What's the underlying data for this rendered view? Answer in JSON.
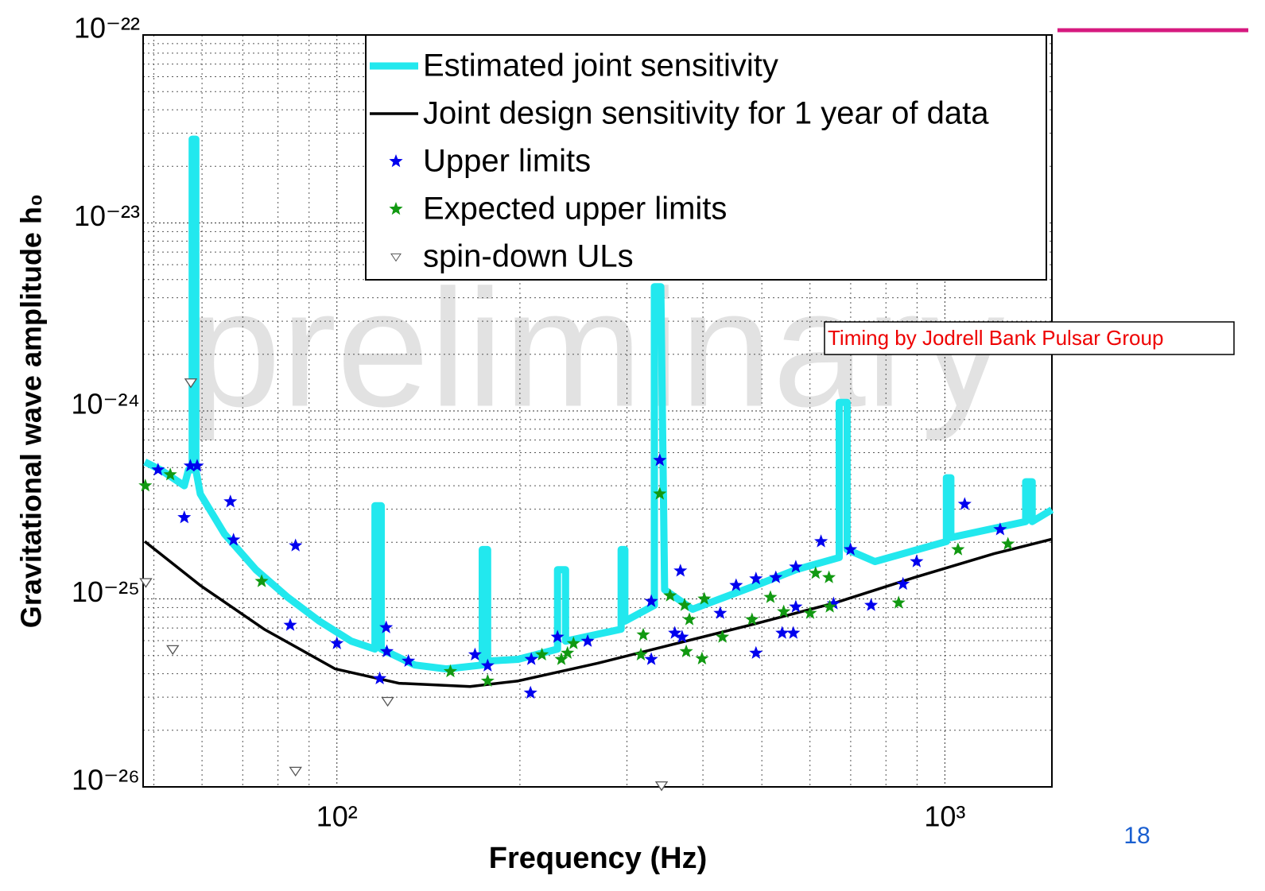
{
  "chart_data": {
    "type": "line",
    "xlabel": "Frequency (Hz)",
    "ylabel": "Gravitational wave amplitude h₀",
    "xscale": "log",
    "yscale": "log",
    "grid": true,
    "legend": "upper right",
    "xlim": [
      48,
      1500
    ],
    "ylim": [
      1e-26,
      1e-22
    ],
    "xticks": [
      {
        "value": 100,
        "label": "10²"
      },
      {
        "value": 1000,
        "label": "10³"
      }
    ],
    "yticks": [
      {
        "value": 1e-26,
        "label": "10⁻²⁶"
      },
      {
        "value": 1e-25,
        "label": "10⁻²⁵"
      },
      {
        "value": 1e-24,
        "label": "10⁻²⁴"
      },
      {
        "value": 1e-23,
        "label": "10⁻²³"
      },
      {
        "value": 1e-22,
        "label": "10⁻²²"
      }
    ],
    "series": [
      {
        "name": "Estimated joint sensitivity",
        "color": "#22e8ee",
        "marker": "line",
        "x": [
          48.3,
          51.3,
          56.1,
          57.0,
          57.8,
          57.8,
          58.6,
          58.6,
          59.6,
          65.3,
          73.6,
          83.0,
          93.6,
          105.6,
          115.5,
          115.5,
          118.3,
          118.3,
          134.3,
          151.4,
          173.4,
          173.4,
          177.0,
          177.0,
          198.7,
          230.6,
          230.6,
          237.7,
          237.7,
          293.4,
          293.4,
          297.6,
          297.6,
          332.8,
          332.8,
          341.0,
          346.0,
          384.6,
          489,
          568.6,
          670.3,
          670.3,
          690.6,
          690.6,
          767.4,
          1006,
          1006,
          1023,
          1023,
          1358,
          1358,
          1392,
          1392,
          1500
        ],
        "values": [
          5.36e-25,
          4.86e-25,
          4e-25,
          4.86e-25,
          4.86e-25,
          2.79e-23,
          2.79e-23,
          4.86e-25,
          3.62e-25,
          2.22e-25,
          1.43e-25,
          1.02e-25,
          7.61e-26,
          5.96e-26,
          5.41e-26,
          3.13e-25,
          3.13e-25,
          5.41e-26,
          4.45e-26,
          4.24e-26,
          4.45e-26,
          1.83e-25,
          1.83e-25,
          4.67e-26,
          4.77e-26,
          5.41e-26,
          1.43e-25,
          1.43e-25,
          5.96e-26,
          6.9e-26,
          1.83e-25,
          1.83e-25,
          7.61e-26,
          9.25e-26,
          4.58e-24,
          4.58e-24,
          1.12e-25,
          8.81e-26,
          1.18e-25,
          1.43e-25,
          1.66e-25,
          1.11e-24,
          1.11e-24,
          1.83e-25,
          1.58e-25,
          2.02e-25,
          4.41e-25,
          4.41e-25,
          2.12e-25,
          2.58e-25,
          4.2e-25,
          4.2e-25,
          2.58e-25,
          2.98e-25
        ]
      },
      {
        "name": "Joint design sensitivity for 1 year of data",
        "color": "#000000",
        "marker": "line",
        "x": [
          48.3,
          59.6,
          75.9,
          99.4,
          126.4,
          165.6,
          198.7,
          268,
          362,
          489,
          660,
          891,
          1205,
          1500
        ],
        "values": [
          2.02e-25,
          1.18e-25,
          6.9e-26,
          4.24e-26,
          3.56e-26,
          3.42e-26,
          3.66e-26,
          4.54e-26,
          5.79e-26,
          7.39e-26,
          9.53e-26,
          1.3e-25,
          1.74e-25,
          2.08e-25
        ]
      },
      {
        "name": "Upper limits",
        "color": "#0000ee",
        "marker": "star",
        "x": [
          50.8,
          56.1,
          57.4,
          58.9,
          66.8,
          67.6,
          85.5,
          83.8,
          100,
          117.6,
          120.5,
          120.8,
          131.1,
          168.7,
          177.0,
          208.2,
          208.8,
          230.6,
          258.5,
          328.9,
          328.9,
          339.7,
          359.6,
          367.3,
          369.7,
          427.1,
          453.6,
          489,
          489,
          527.2,
          540,
          563.4,
          568.6,
          568.6,
          625.6,
          656.1,
          699.5,
          756.2,
          853.4,
          898.6,
          1078,
          1233
        ],
        "values": [
          4.86e-25,
          2.71e-25,
          5.1e-25,
          5.1e-25,
          3.29e-25,
          2.06e-25,
          1.92e-25,
          7.25e-26,
          5.79e-26,
          3.77e-26,
          7.04e-26,
          5.25e-26,
          4.67e-26,
          5.05e-26,
          4.41e-26,
          3.16e-26,
          4.77e-26,
          6.27e-26,
          5.96e-26,
          4.77e-26,
          9.71e-26,
          5.46e-25,
          6.58e-26,
          1.41e-25,
          6.27e-26,
          8.39e-26,
          1.18e-25,
          1.28e-25,
          5.15e-26,
          1.3e-25,
          6.58e-26,
          6.58e-26,
          1.48e-25,
          9.07e-26,
          2.02e-25,
          9.43e-26,
          1.83e-25,
          9.25e-26,
          1.2e-25,
          1.58e-25,
          3.19e-25,
          2.34e-25
        ]
      },
      {
        "name": "Expected upper limits",
        "color": "#119911",
        "marker": "star",
        "x": [
          48.4,
          53.2,
          75.2,
          153.7,
          177.0,
          217.4,
          234.0,
          239.5,
          245.0,
          316.2,
          319.1,
          339.7,
          353.2,
          373.2,
          380.0,
          375.5,
          398.6,
          402.1,
          430.6,
          481.7,
          516.5,
          543.2,
          600.4,
          612.9,
          644.7,
          646.6,
          839.3,
          1051,
          1270
        ],
        "values": [
          4e-25,
          4.58e-25,
          1.24e-25,
          4.11e-26,
          3.66e-26,
          5.05e-26,
          4.77e-26,
          5.15e-26,
          5.79e-26,
          5.05e-26,
          6.44e-26,
          3.62e-25,
          1.04e-25,
          9.25e-26,
          7.76e-26,
          5.25e-26,
          4.81e-26,
          1e-25,
          6.27e-26,
          7.76e-26,
          1.02e-25,
          8.55e-26,
          8.39e-26,
          1.37e-25,
          1.3e-25,
          9.07e-26,
          9.53e-26,
          1.83e-25,
          1.96e-25
        ]
      },
      {
        "name": "spin-down ULs",
        "color": "#555555",
        "marker": "triangle",
        "x": [
          48.5,
          53.7,
          57.5,
          85.5,
          121.2,
          342.0
        ],
        "values": [
          1.23e-25,
          5.41e-26,
          1.42e-24,
          1.22e-26,
          2.87e-26,
          1.02e-26
        ]
      }
    ],
    "annotations": [
      "preliminary",
      "Timing by Jodrell Bank Pulsar Group"
    ],
    "page_number": "18"
  }
}
